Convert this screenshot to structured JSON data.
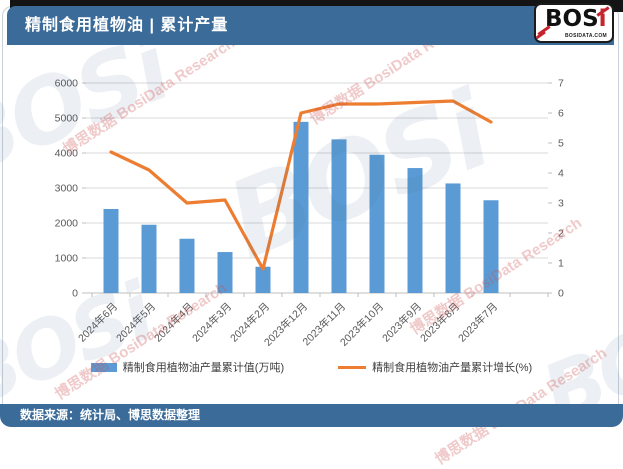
{
  "header": {
    "title": "精制食用植物油 | 累计产量",
    "logo": {
      "text_main": "BOS",
      "text_i": "i",
      "domain": "BOSIDATA.COM"
    }
  },
  "footer": {
    "source": "数据来源：统计局、博思数据整理"
  },
  "watermark": {
    "text": "博思数据 BosiData Research",
    "big": "BOSi"
  },
  "colors": {
    "brand_blue": "#3A6B99",
    "bar_blue": "#5B9BD5",
    "line_orange": "#ED7D31",
    "logo_red": "#C5232D",
    "grid": "#D9D9D9",
    "axis": "#BFBFBF",
    "axis_text": "#595959"
  },
  "chart_data": {
    "type": "bar",
    "subtype": "bar+line dual-axis",
    "title": "精制食用植物油 | 累计产量",
    "categories": [
      "2024年6月",
      "2024年5月",
      "2024年4月",
      "2024年3月",
      "2024年2月",
      "2023年12月",
      "2023年11月",
      "2023年10月",
      "2023年9月",
      "2023年8月",
      "2023年7月"
    ],
    "series": [
      {
        "name": "精制食用植物油产量累计值(万吨)",
        "type": "bar",
        "axis": "left",
        "color": "#5B9BD5",
        "values": [
          2400,
          1950,
          1550,
          1170,
          750,
          4890,
          4390,
          3950,
          3570,
          3130,
          2650
        ]
      },
      {
        "name": "精制食用植物油产量累计增长(%)",
        "type": "line",
        "axis": "right",
        "color": "#ED7D31",
        "values": [
          4.7,
          4.1,
          3.0,
          3.1,
          0.8,
          6.0,
          6.3,
          6.3,
          6.35,
          6.4,
          5.7
        ]
      }
    ],
    "left_axis": {
      "min": 0,
      "max": 6000,
      "step": 1000
    },
    "right_axis": {
      "min": 0,
      "max": 7,
      "step": 1
    },
    "grid": true,
    "legend_position": "bottom",
    "x_label_rotation": -45
  }
}
